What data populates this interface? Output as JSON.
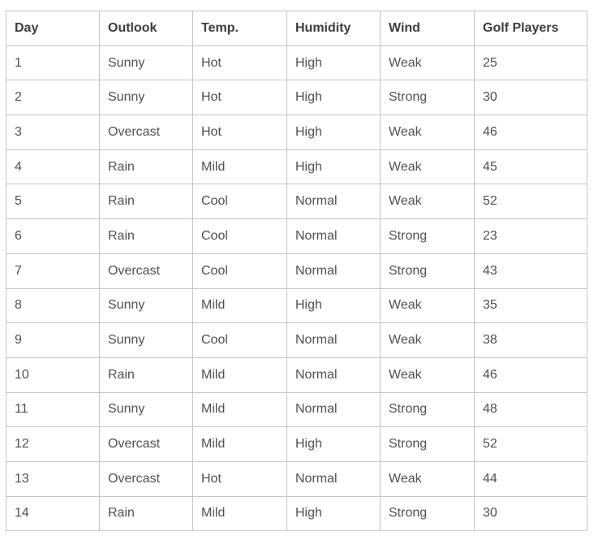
{
  "table": {
    "headers": [
      "Day",
      "Outlook",
      "Temp.",
      "Humidity",
      "Wind",
      "Golf Players"
    ],
    "rows": [
      [
        "1",
        "Sunny",
        "Hot",
        "High",
        "Weak",
        "25"
      ],
      [
        "2",
        "Sunny",
        "Hot",
        "High",
        "Strong",
        "30"
      ],
      [
        "3",
        "Overcast",
        "Hot",
        "High",
        "Weak",
        "46"
      ],
      [
        "4",
        "Rain",
        "Mild",
        "High",
        "Weak",
        "45"
      ],
      [
        "5",
        "Rain",
        "Cool",
        "Normal",
        "Weak",
        "52"
      ],
      [
        "6",
        "Rain",
        "Cool",
        "Normal",
        "Strong",
        "23"
      ],
      [
        "7",
        "Overcast",
        "Cool",
        "Normal",
        "Strong",
        "43"
      ],
      [
        "8",
        "Sunny",
        "Mild",
        "High",
        "Weak",
        "35"
      ],
      [
        "9",
        "Sunny",
        "Cool",
        "Normal",
        "Weak",
        "38"
      ],
      [
        "10",
        "Rain",
        "Mild",
        "Normal",
        "Weak",
        "46"
      ],
      [
        "11",
        "Sunny",
        "Mild",
        "Normal",
        "Strong",
        "48"
      ],
      [
        "12",
        "Overcast",
        "Mild",
        "High",
        "Strong",
        "52"
      ],
      [
        "13",
        "Overcast",
        "Hot",
        "Normal",
        "Weak",
        "44"
      ],
      [
        "14",
        "Rain",
        "Mild",
        "High",
        "Strong",
        "30"
      ]
    ]
  },
  "colors": {
    "border": "#c4c4c4",
    "header_text": "#3d3d3d",
    "cell_text": "#505050"
  }
}
